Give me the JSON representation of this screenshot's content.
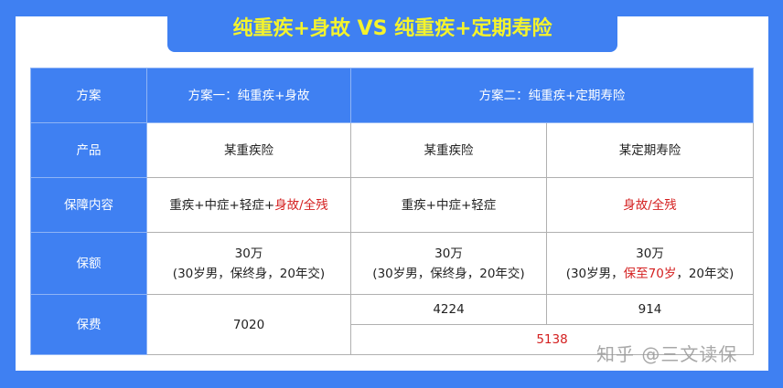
{
  "title": "纯重疾+身故 VS 纯重疾+定期寿险",
  "header": {
    "label": "方案",
    "plan1": "方案一：纯重疾+身故",
    "plan2": "方案二：纯重疾+定期寿险"
  },
  "rows": {
    "product": {
      "label": "产品",
      "p1": "某重疾险",
      "p2a": "某重疾险",
      "p2b": "某定期寿险"
    },
    "coverage": {
      "label": "保障内容",
      "p1_black": "重疾+中症+轻症+",
      "p1_red": "身故/全残",
      "p2a": "重疾+中症+轻症",
      "p2b_red": "身故/全残"
    },
    "amount": {
      "label": "保额",
      "p1_l1": "30万",
      "p1_l2": "(30岁男，保终身，20年交)",
      "p2a_l1": "30万",
      "p2a_l2": "(30岁男，保终身，20年交)",
      "p2b_l1": "30万",
      "p2b_l2_pre": "(30岁男，",
      "p2b_l2_red": "保至70岁",
      "p2b_l2_post": "，20年交)"
    },
    "premium": {
      "label": "保费",
      "p1": "7020",
      "p2a": "4224",
      "p2b": "914",
      "p2_total": "5138"
    }
  },
  "watermark": "知乎 @三文读保",
  "colors": {
    "blue": "#3f80f2",
    "title_yellow": "#f4f32c",
    "red": "#d42020"
  }
}
